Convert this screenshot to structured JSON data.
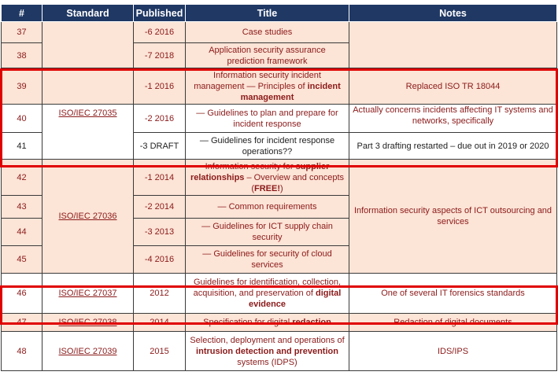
{
  "headers": {
    "num": "#",
    "standard": "Standard",
    "published": "Published",
    "title": "Title",
    "notes": "Notes"
  },
  "standards": {
    "s27035": "ISO/IEC 27035",
    "s27036": "ISO/IEC 27036",
    "s27037": "ISO/IEC 27037",
    "s27038": "ISO/IEC 27038",
    "s27039": "ISO/IEC 27039"
  },
  "rows": {
    "r37": {
      "num": "37",
      "published": "-6 2016",
      "title": "Case studies"
    },
    "r38": {
      "num": "38",
      "published": "-7 2018",
      "title": "Application security assurance prediction framework"
    },
    "r39": {
      "num": "39",
      "published": "-1 2016",
      "title_a": "Information security incident management — Principles of ",
      "title_b": "incident management"
    },
    "r40": {
      "num": "40",
      "published": "-2 2016",
      "title": "— Guidelines to plan and prepare for incident response"
    },
    "r41": {
      "num": "41",
      "published": "-3 DRAFT",
      "title": "— Guidelines for incident response operations??"
    },
    "r42": {
      "num": "42",
      "published": "-1 2014",
      "title_a": "Information security for ",
      "title_b": "supplier relationships",
      "title_c": " – Overview and concepts (",
      "title_d": "FREE!",
      "title_e": ")"
    },
    "r43": {
      "num": "43",
      "published": "-2 2014",
      "title": "— Common requirements"
    },
    "r44": {
      "num": "44",
      "published": "-3 2013",
      "title": "— Guidelines for ICT supply chain security"
    },
    "r45": {
      "num": "45",
      "published": "-4 2016",
      "title": "— Guidelines for security of cloud services"
    },
    "r46": {
      "num": "46",
      "published": "2012",
      "title_a": "Guidelines for identification, collection, acquisition, and preservation of ",
      "title_b": "digital evidence"
    },
    "r47": {
      "num": "47",
      "published": "2014",
      "title_a": "Specification for digital ",
      "title_b": "redaction"
    },
    "r48": {
      "num": "48",
      "published": "2015",
      "title_a": "Selection, deployment and operations of ",
      "title_b": "intrusion detection and prevention",
      "title_c": " systems (IDPS)"
    }
  },
  "notes": {
    "n39": "Replaced ISO TR 18044",
    "n40": "Actually concerns incidents affecting IT systems and networks, specifically",
    "n41": "Part 3 drafting restarted – due out in 2019 or 2020",
    "n42": "Information security aspects of ICT outsourcing and services",
    "n46": "One of several IT forensics standards",
    "n47": "Redaction of digital documents",
    "n48": "IDS/IPS"
  }
}
